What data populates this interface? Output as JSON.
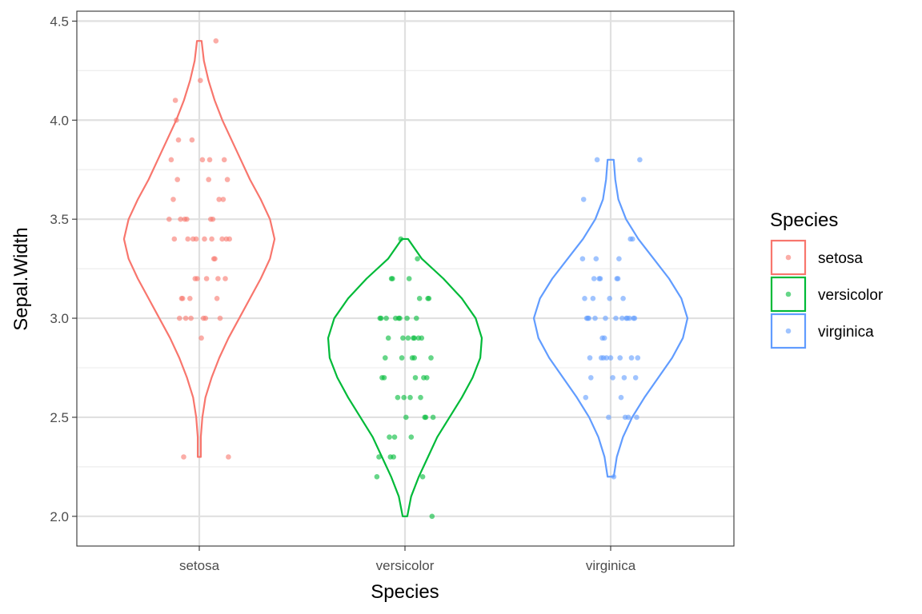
{
  "chart_data": {
    "type": "violin",
    "xlabel": "Species",
    "ylabel": "Sepal.Width",
    "categories": [
      "setosa",
      "versicolor",
      "virginica"
    ],
    "ylim": [
      1.85,
      4.55
    ],
    "y_ticks": [
      2.0,
      2.5,
      3.0,
      3.5,
      4.0,
      4.5
    ],
    "y_tick_labels": [
      "2.0",
      "2.5",
      "3.0",
      "3.5",
      "4.0",
      "4.5"
    ],
    "grid": true,
    "legend": {
      "title": "Species",
      "position": "right",
      "entries": [
        "setosa",
        "versicolor",
        "virginica"
      ]
    },
    "colors": [
      "#F8766D",
      "#00BA38",
      "#619CFF"
    ],
    "series": [
      {
        "name": "setosa",
        "color": "#F8766D",
        "range": [
          2.3,
          4.4
        ],
        "density": [
          [
            2.3,
            0.02
          ],
          [
            2.4,
            0.02
          ],
          [
            2.5,
            0.04
          ],
          [
            2.6,
            0.08
          ],
          [
            2.7,
            0.16
          ],
          [
            2.8,
            0.26
          ],
          [
            2.9,
            0.38
          ],
          [
            3.0,
            0.52
          ],
          [
            3.1,
            0.66
          ],
          [
            3.2,
            0.8
          ],
          [
            3.3,
            0.92
          ],
          [
            3.4,
            0.98
          ],
          [
            3.5,
            0.92
          ],
          [
            3.6,
            0.8
          ],
          [
            3.7,
            0.66
          ],
          [
            3.8,
            0.54
          ],
          [
            3.9,
            0.42
          ],
          [
            4.0,
            0.3
          ],
          [
            4.1,
            0.2
          ],
          [
            4.2,
            0.12
          ],
          [
            4.3,
            0.06
          ],
          [
            4.4,
            0.03
          ]
        ],
        "points": [
          [
            -0.15,
            2.3
          ],
          [
            -0.14,
            3.5
          ],
          [
            0.04,
            3.0
          ],
          [
            0.18,
            3.2
          ],
          [
            -0.09,
            3.1
          ],
          [
            0.23,
            3.6
          ],
          [
            -0.2,
            3.9
          ],
          [
            -0.06,
            3.4
          ],
          [
            0.12,
            3.4
          ],
          [
            0.02,
            2.9
          ],
          [
            -0.17,
            3.1
          ],
          [
            0.27,
            3.7
          ],
          [
            -0.11,
            3.4
          ],
          [
            0.2,
            3.0
          ],
          [
            0.06,
            3.0
          ],
          [
            -0.22,
            4.0
          ],
          [
            0.16,
            4.4
          ],
          [
            -0.07,
            3.9
          ],
          [
            0.11,
            3.5
          ],
          [
            -0.27,
            3.8
          ],
          [
            0.24,
            3.8
          ],
          [
            -0.03,
            3.4
          ],
          [
            0.09,
            3.7
          ],
          [
            -0.25,
            3.6
          ],
          [
            0.14,
            3.3
          ],
          [
            0.26,
            3.4
          ],
          [
            -0.19,
            3.0
          ],
          [
            0.05,
            3.4
          ],
          [
            -0.12,
            3.5
          ],
          [
            0.22,
            3.4
          ],
          [
            -0.04,
            3.2
          ],
          [
            0.17,
            3.1
          ],
          [
            0.29,
            3.4
          ],
          [
            -0.23,
            4.1
          ],
          [
            0.01,
            4.2
          ],
          [
            -0.16,
            3.1
          ],
          [
            0.07,
            3.2
          ],
          [
            -0.29,
            3.5
          ],
          [
            0.19,
            3.6
          ],
          [
            -0.08,
            3.0
          ],
          [
            -0.24,
            3.4
          ],
          [
            0.13,
            3.5
          ],
          [
            0.28,
            2.3
          ],
          [
            -0.02,
            3.2
          ],
          [
            -0.18,
            3.5
          ],
          [
            0.1,
            3.8
          ],
          [
            -0.13,
            3.0
          ],
          [
            0.03,
            3.8
          ],
          [
            0.25,
            3.2
          ],
          [
            -0.21,
            3.7
          ],
          [
            0.15,
            3.3
          ]
        ]
      },
      {
        "name": "versicolor",
        "color": "#00BA38",
        "range": [
          2.0,
          3.4
        ],
        "density": [
          [
            2.0,
            0.03
          ],
          [
            2.1,
            0.08
          ],
          [
            2.2,
            0.18
          ],
          [
            2.3,
            0.3
          ],
          [
            2.4,
            0.42
          ],
          [
            2.5,
            0.58
          ],
          [
            2.6,
            0.74
          ],
          [
            2.7,
            0.88
          ],
          [
            2.8,
            0.98
          ],
          [
            2.9,
            1.0
          ],
          [
            3.0,
            0.92
          ],
          [
            3.1,
            0.74
          ],
          [
            3.2,
            0.5
          ],
          [
            3.3,
            0.22
          ],
          [
            3.4,
            0.04
          ]
        ],
        "points": [
          [
            0.04,
            3.2
          ],
          [
            -0.12,
            3.2
          ],
          [
            0.14,
            3.1
          ],
          [
            -0.25,
            2.3
          ],
          [
            0.09,
            2.8
          ],
          [
            -0.03,
            2.8
          ],
          [
            0.12,
            3.3
          ],
          [
            -0.15,
            2.4
          ],
          [
            0.03,
            2.9
          ],
          [
            -0.22,
            2.7
          ],
          [
            0.26,
            2.0
          ],
          [
            -0.09,
            3.0
          ],
          [
            0.17,
            2.2
          ],
          [
            0.08,
            2.9
          ],
          [
            -0.16,
            2.9
          ],
          [
            0.22,
            3.1
          ],
          [
            -0.06,
            3.0
          ],
          [
            0.1,
            2.7
          ],
          [
            -0.27,
            2.2
          ],
          [
            0.01,
            2.5
          ],
          [
            -0.13,
            3.2
          ],
          [
            0.07,
            2.8
          ],
          [
            0.2,
            2.5
          ],
          [
            -0.19,
            2.8
          ],
          [
            0.13,
            2.9
          ],
          [
            -0.05,
            3.0
          ],
          [
            0.25,
            2.8
          ],
          [
            -0.24,
            3.0
          ],
          [
            0.16,
            2.9
          ],
          [
            -0.01,
            2.6
          ],
          [
            0.06,
            2.4
          ],
          [
            -0.1,
            2.4
          ],
          [
            0.18,
            2.7
          ],
          [
            -0.2,
            2.7
          ],
          [
            0.11,
            3.0
          ],
          [
            -0.04,
            3.4
          ],
          [
            0.23,
            3.1
          ],
          [
            -0.14,
            2.3
          ],
          [
            0.02,
            3.0
          ],
          [
            0.27,
            2.5
          ],
          [
            -0.07,
            2.6
          ],
          [
            0.15,
            2.6
          ],
          [
            -0.18,
            3.0
          ],
          [
            0.05,
            2.6
          ],
          [
            -0.11,
            2.3
          ],
          [
            0.21,
            2.7
          ],
          [
            -0.23,
            3.0
          ],
          [
            0.09,
            2.9
          ],
          [
            -0.02,
            2.9
          ],
          [
            0.19,
            2.5
          ]
        ]
      },
      {
        "name": "virginica",
        "color": "#619CFF",
        "range": [
          2.2,
          3.8
        ],
        "density": [
          [
            2.2,
            0.04
          ],
          [
            2.3,
            0.08
          ],
          [
            2.4,
            0.16
          ],
          [
            2.5,
            0.28
          ],
          [
            2.6,
            0.44
          ],
          [
            2.7,
            0.62
          ],
          [
            2.8,
            0.8
          ],
          [
            2.9,
            0.94
          ],
          [
            3.0,
            1.0
          ],
          [
            3.1,
            0.92
          ],
          [
            3.2,
            0.76
          ],
          [
            3.3,
            0.56
          ],
          [
            3.4,
            0.36
          ],
          [
            3.5,
            0.2
          ],
          [
            3.6,
            0.1
          ],
          [
            3.7,
            0.06
          ],
          [
            3.8,
            0.04
          ]
        ],
        "points": [
          [
            -0.14,
            3.3
          ],
          [
            0.02,
            2.7
          ],
          [
            0.18,
            3.0
          ],
          [
            -0.06,
            2.9
          ],
          [
            0.11,
            3.0
          ],
          [
            -0.22,
            3.0
          ],
          [
            0.25,
            2.5
          ],
          [
            -0.08,
            2.9
          ],
          [
            0.14,
            2.5
          ],
          [
            -0.26,
            3.6
          ],
          [
            0.06,
            3.2
          ],
          [
            -0.19,
            2.7
          ],
          [
            0.22,
            3.0
          ],
          [
            -0.02,
            2.5
          ],
          [
            0.09,
            2.8
          ],
          [
            -0.11,
            3.2
          ],
          [
            0.16,
            3.0
          ],
          [
            0.28,
            3.8
          ],
          [
            -0.24,
            2.6
          ],
          [
            0.03,
            2.2
          ],
          [
            -0.16,
            3.2
          ],
          [
            0.2,
            2.8
          ],
          [
            -0.04,
            2.8
          ],
          [
            0.13,
            2.7
          ],
          [
            -0.27,
            3.3
          ],
          [
            0.07,
            3.2
          ],
          [
            -0.09,
            2.8
          ],
          [
            0.23,
            3.0
          ],
          [
            -0.2,
            2.8
          ],
          [
            0.15,
            3.0
          ],
          [
            0.0,
            2.8
          ],
          [
            -0.13,
            3.8
          ],
          [
            0.26,
            2.8
          ],
          [
            -0.07,
            2.8
          ],
          [
            0.1,
            2.6
          ],
          [
            -0.23,
            3.0
          ],
          [
            0.19,
            3.4
          ],
          [
            -0.01,
            3.1
          ],
          [
            0.05,
            3.0
          ],
          [
            -0.17,
            3.1
          ],
          [
            0.12,
            3.1
          ],
          [
            -0.25,
            3.1
          ],
          [
            0.24,
            2.7
          ],
          [
            -0.1,
            3.2
          ],
          [
            0.08,
            3.3
          ],
          [
            -0.21,
            3.0
          ],
          [
            0.17,
            2.5
          ],
          [
            -0.05,
            3.0
          ],
          [
            0.21,
            3.4
          ],
          [
            -0.15,
            3.0
          ]
        ]
      }
    ]
  }
}
